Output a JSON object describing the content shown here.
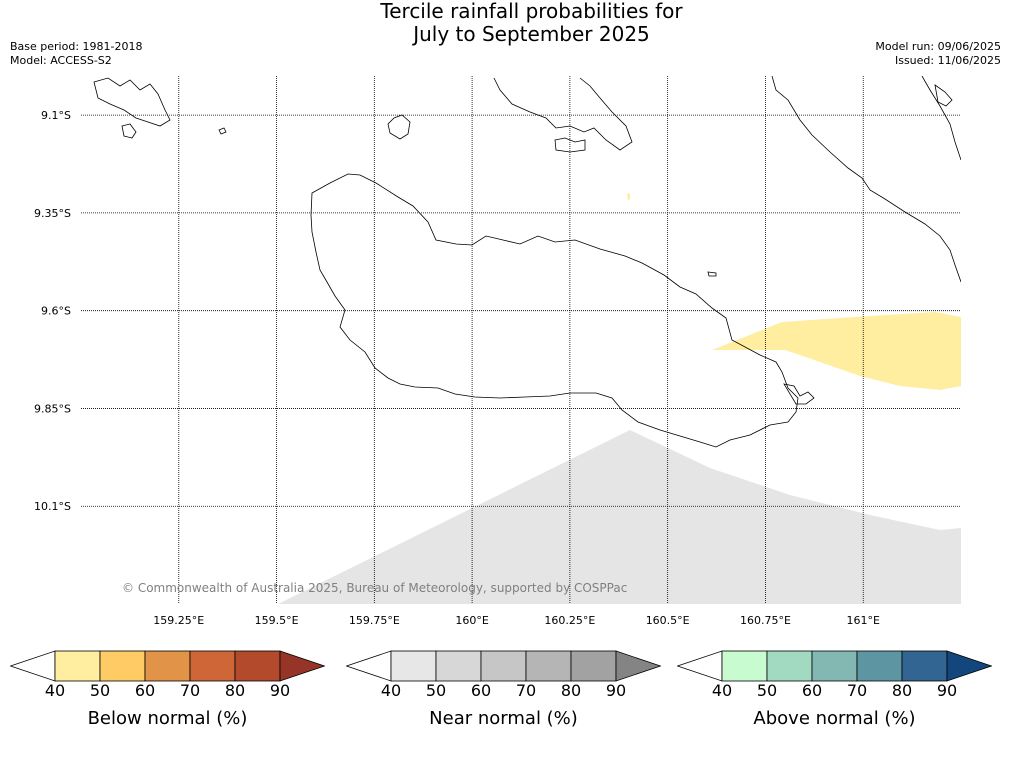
{
  "title": {
    "line1": "Tercile rainfall probabilities for",
    "line2": "July to September 2025"
  },
  "meta": {
    "base_period": "Base period: 1981-2018",
    "model": "Model: ACCESS-S2",
    "model_run": "Model run: 09/06/2025",
    "issued": "Issued: 11/06/2025"
  },
  "map": {
    "lon_range": [
      159.0,
      161.25
    ],
    "lat_range": [
      -10.35,
      -9.0
    ],
    "lon_ticks": [
      {
        "value": 159.25,
        "label": "159.25°E"
      },
      {
        "value": 159.5,
        "label": "159.5°E"
      },
      {
        "value": 159.75,
        "label": "159.75°E"
      },
      {
        "value": 160.0,
        "label": "160°E"
      },
      {
        "value": 160.25,
        "label": "160.25°E"
      },
      {
        "value": 160.5,
        "label": "160.5°E"
      },
      {
        "value": 160.75,
        "label": "160.75°E"
      },
      {
        "value": 161.0,
        "label": "161°E"
      }
    ],
    "lat_ticks": [
      {
        "value": -9.1,
        "label": "9.1°S"
      },
      {
        "value": -9.35,
        "label": "9.35°S"
      },
      {
        "value": -9.6,
        "label": "9.6°S"
      },
      {
        "value": -9.85,
        "label": "9.85°S"
      },
      {
        "value": -10.1,
        "label": "10.1°S"
      }
    ],
    "grid": true,
    "copyright": "© Commonwealth of Australia 2025, Bureau of Meteorology, supported by COSPPac",
    "shaded_regions": [
      {
        "category": "Below normal",
        "class": "40-50",
        "color": "#ffeda0"
      },
      {
        "category": "Near normal",
        "class": "40-50",
        "color": "#e5e5e5"
      }
    ]
  },
  "colorbars": [
    {
      "title": "Below normal (%)",
      "ticks": [
        "40",
        "50",
        "60",
        "70",
        "80",
        "90"
      ],
      "under_color": "#ffffff",
      "colors": [
        "#ffeda0",
        "#fecb65",
        "#e19447",
        "#cf6637",
        "#b24a2b"
      ],
      "over_color": "#963527"
    },
    {
      "title": "Near normal (%)",
      "ticks": [
        "40",
        "50",
        "60",
        "70",
        "80",
        "90"
      ],
      "under_color": "#ffffff",
      "colors": [
        "#e7e7e7",
        "#d7d7d7",
        "#c6c6c6",
        "#b5b5b5",
        "#a2a2a2"
      ],
      "over_color": "#848484"
    },
    {
      "title": "Above normal (%)",
      "ticks": [
        "40",
        "50",
        "60",
        "70",
        "80",
        "90"
      ],
      "under_color": "#ffffff",
      "colors": [
        "#c8fbd0",
        "#a2dac1",
        "#83b8b2",
        "#5e95a2",
        "#336593"
      ],
      "over_color": "#14467e"
    }
  ]
}
